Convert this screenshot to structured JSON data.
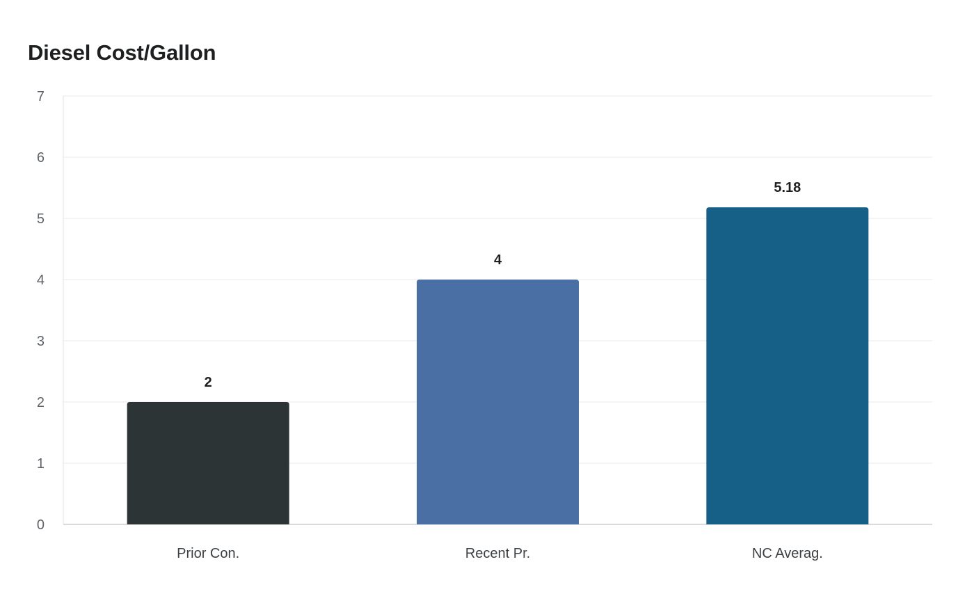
{
  "chart_data": {
    "type": "bar",
    "title": "Diesel Cost/Gallon",
    "categories": [
      "Prior Con.",
      "Recent Pr.",
      "NC Averag."
    ],
    "values": [
      2,
      4,
      5.18
    ],
    "value_labels": [
      "2",
      "4",
      "5.18"
    ],
    "colors": [
      "#2d3436",
      "#4a6fa5",
      "#166088"
    ],
    "ylim": [
      0,
      7
    ],
    "yticks": [
      0,
      1,
      2,
      3,
      4,
      5,
      6,
      7
    ],
    "xlabel": "",
    "ylabel": "",
    "grid": true,
    "legend": "none"
  }
}
